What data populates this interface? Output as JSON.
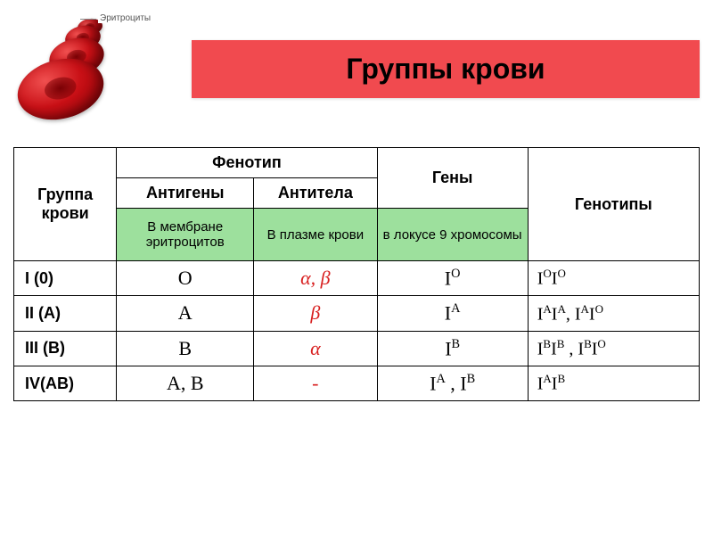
{
  "title": "Группы крови",
  "cell_label": "Эритроциты",
  "header": {
    "group": "Группа крови",
    "pheno": "Фенотип",
    "antigens": "Антигены",
    "antibodies": "Антитела",
    "genes": "Гены",
    "genotypes": "Генотипы"
  },
  "locations": {
    "antigens": "В мембране эритроцитов",
    "antibodies": "В плазме крови",
    "genes": "в локусе 9 хромосомы"
  },
  "rows": {
    "r1": {
      "group": "I (0)",
      "antigen": "O",
      "antibody": "α, β",
      "gene_html": "I<sup>O</sup>",
      "geno_html": "I<sup>O</sup>I<sup>O</sup>"
    },
    "r2": {
      "group": "II (A)",
      "antigen": "A",
      "antibody": "β",
      "gene_html": "I<sup>A</sup>",
      "geno_html": "I<sup>A</sup>I<sup>A</sup>,  I<sup>A</sup>I<sup>O</sup>"
    },
    "r3": {
      "group": "III (B)",
      "antigen": "B",
      "antibody": "α",
      "gene_html": "I<sup>B</sup>",
      "geno_html": "I<sup>B</sup>I<sup>B</sup> , I<sup>B</sup>I<sup>O</sup>"
    },
    "r4": {
      "group": "IV(AB)",
      "antigen": "A, B",
      "antibody": "-",
      "gene_html": "I<sup>A</sup> , I<sup>B</sup>",
      "geno_html": "I<sup>A</sup>I<sup>B</sup>"
    }
  },
  "colors": {
    "banner_bg": "#f14a4f",
    "green_bg": "#9de09d",
    "red_text": "#d81f1f",
    "cell_dark": "#8b0004",
    "cell_mid": "#c91016",
    "cell_light": "#f05050"
  }
}
